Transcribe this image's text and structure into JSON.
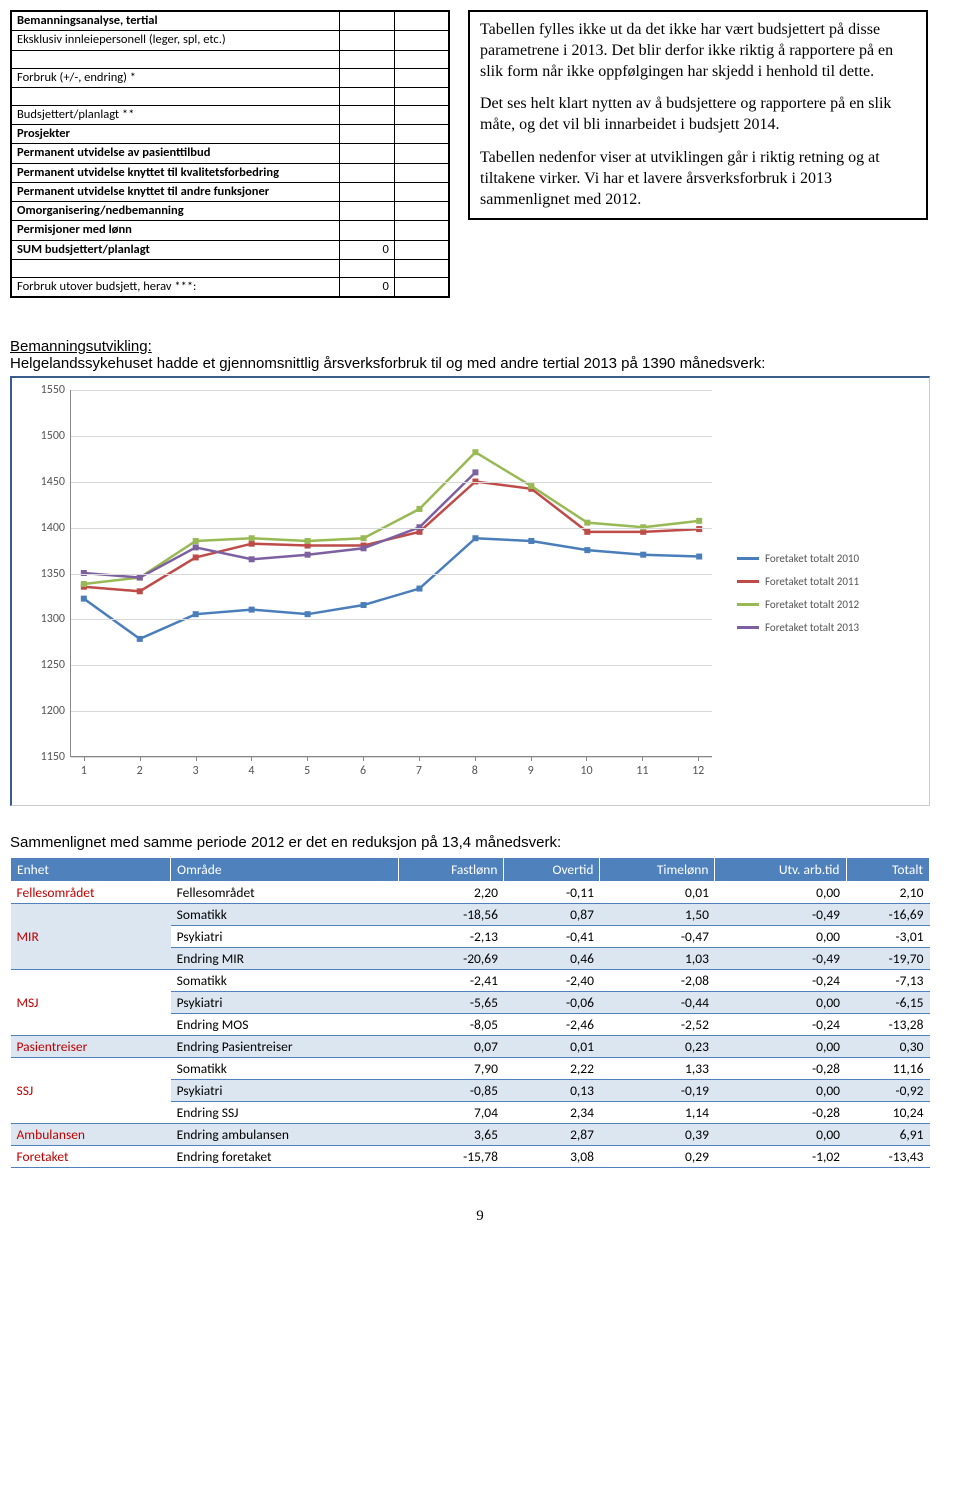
{
  "analysis_table": {
    "rows": [
      {
        "label": "Bemanningsanalyse, tertial",
        "bold": true,
        "v1": "",
        "v2": ""
      },
      {
        "label": "Eksklusiv innleiepersonell (leger, spl, etc.)",
        "bold": false,
        "v1": "",
        "v2": ""
      },
      {
        "label": "",
        "bold": false,
        "v1": "",
        "v2": ""
      },
      {
        "label": "Forbruk (+/-, endring) *",
        "bold": false,
        "v1": "",
        "v2": ""
      },
      {
        "label": "",
        "bold": false,
        "v1": "",
        "v2": ""
      },
      {
        "label": "Budsjettert/planlagt **",
        "bold": false,
        "v1": "",
        "v2": ""
      },
      {
        "label": "Prosjekter",
        "bold": true,
        "v1": "",
        "v2": ""
      },
      {
        "label": "Permanent utvidelse av pasienttilbud",
        "bold": true,
        "v1": "",
        "v2": ""
      },
      {
        "label": "Permanent utvidelse knyttet til kvalitetsforbedring",
        "bold": true,
        "v1": "",
        "v2": ""
      },
      {
        "label": "Permanent utvidelse knyttet til andre funksjoner",
        "bold": true,
        "v1": "",
        "v2": ""
      },
      {
        "label": "Omorganisering/nedbemanning",
        "bold": true,
        "v1": "",
        "v2": ""
      },
      {
        "label": "Permisjoner med lønn",
        "bold": true,
        "v1": "",
        "v2": ""
      },
      {
        "label": "SUM budsjettert/planlagt",
        "bold": true,
        "v1": "0",
        "v2": ""
      },
      {
        "label": "",
        "bold": false,
        "v1": "",
        "v2": ""
      },
      {
        "label": "Forbruk utover budsjett, herav ***:",
        "bold": false,
        "v1": "0",
        "v2": ""
      }
    ]
  },
  "text_box": {
    "p1": "Tabellen fylles ikke ut da det ikke har vært budsjettert på disse parametrene i 2013. Det blir derfor ikke riktig å rapportere på en slik form når ikke oppfølgingen har skjedd i henhold til dette.",
    "p2": "Det ses helt klart nytten av å budsjettere og rapportere på en slik måte, og det vil bli innarbeidet i budsjett 2014.",
    "p3": "Tabellen nedenfor viser at utviklingen går i riktig retning og at tiltakene virker. Vi har et lavere årsverksforbruk i 2013 sammenlignet med 2012."
  },
  "section1": {
    "title_a": "Bemanningsutvikling:",
    "title_b": "Helgelandssykehuset hadde et gjennomsnittlig årsverksforbruk til og med andre tertial 2013 på 1390 månedsverk:"
  },
  "chart": {
    "ymin": 1150,
    "ymax": 1550,
    "ystep": 50,
    "xcount": 12,
    "grid_color": "#d8d8d8",
    "axis_color": "#888888",
    "series": [
      {
        "name": "Foretaket totalt 2010",
        "color": "#4a7ebb",
        "values": [
          1322,
          1278,
          1305,
          1310,
          1305,
          1315,
          1333,
          1388,
          1385,
          1375,
          1370,
          1368
        ]
      },
      {
        "name": "Foretaket totalt 2011",
        "color": "#be4b48",
        "values": [
          1335,
          1330,
          1367,
          1382,
          1380,
          1380,
          1395,
          1450,
          1442,
          1395,
          1395,
          1398
        ]
      },
      {
        "name": "Foretaket totalt 2012",
        "color": "#98b954",
        "values": [
          1338,
          1345,
          1385,
          1388,
          1385,
          1388,
          1420,
          1482,
          1445,
          1405,
          1400,
          1407
        ]
      },
      {
        "name": "Foretaket totalt 2013",
        "color": "#7d60a0",
        "values": [
          1350,
          1345,
          1378,
          1365,
          1370,
          1377,
          1400,
          1460,
          null,
          null,
          null,
          null
        ]
      }
    ],
    "y_labels": [
      "1150",
      "1200",
      "1250",
      "1300",
      "1350",
      "1400",
      "1450",
      "1500",
      "1550"
    ],
    "x_labels": [
      "1",
      "2",
      "3",
      "4",
      "5",
      "6",
      "7",
      "8",
      "9",
      "10",
      "11",
      "12"
    ]
  },
  "section2": {
    "text": "Sammenlignet med samme periode 2012 er det en reduksjon på 13,4 månedsverk:"
  },
  "data_table": {
    "headers": [
      "Enhet",
      "Område",
      "Fastlønn",
      "Overtid",
      "Timelønn",
      "Utv. arb.tid",
      "Totalt"
    ],
    "rows": [
      {
        "unit": "Fellesområdet",
        "area": "Fellesområdet",
        "f": "2,20",
        "o": "-0,11",
        "t": "0,01",
        "u": "0,00",
        "tot": "2,10",
        "stripe": false,
        "show_unit": true
      },
      {
        "unit": "MIR",
        "area": "Somatikk",
        "f": "-18,56",
        "o": "0,87",
        "t": "1,50",
        "u": "-0,49",
        "tot": "-16,69",
        "stripe": true,
        "show_unit": true
      },
      {
        "unit": "",
        "area": "Psykiatri",
        "f": "-2,13",
        "o": "-0,41",
        "t": "-0,47",
        "u": "0,00",
        "tot": "-3,01",
        "stripe": false,
        "show_unit": false
      },
      {
        "unit": "",
        "area": "Endring MIR",
        "f": "-20,69",
        "o": "0,46",
        "t": "1,03",
        "u": "-0,49",
        "tot": "-19,70",
        "stripe": true,
        "show_unit": false
      },
      {
        "unit": "MSJ",
        "area": "Somatikk",
        "f": "-2,41",
        "o": "-2,40",
        "t": "-2,08",
        "u": "-0,24",
        "tot": "-7,13",
        "stripe": false,
        "show_unit": true
      },
      {
        "unit": "",
        "area": "Psykiatri",
        "f": "-5,65",
        "o": "-0,06",
        "t": "-0,44",
        "u": "0,00",
        "tot": "-6,15",
        "stripe": true,
        "show_unit": false
      },
      {
        "unit": "",
        "area": "Endring MOS",
        "f": "-8,05",
        "o": "-2,46",
        "t": "-2,52",
        "u": "-0,24",
        "tot": "-13,28",
        "stripe": false,
        "show_unit": false
      },
      {
        "unit": "Pasientreiser",
        "area": "Endring Pasientreiser",
        "f": "0,07",
        "o": "0,01",
        "t": "0,23",
        "u": "0,00",
        "tot": "0,30",
        "stripe": true,
        "show_unit": true
      },
      {
        "unit": "SSJ",
        "area": "Somatikk",
        "f": "7,90",
        "o": "2,22",
        "t": "1,33",
        "u": "-0,28",
        "tot": "11,16",
        "stripe": false,
        "show_unit": true
      },
      {
        "unit": "",
        "area": "Psykiatri",
        "f": "-0,85",
        "o": "0,13",
        "t": "-0,19",
        "u": "0,00",
        "tot": "-0,92",
        "stripe": true,
        "show_unit": false
      },
      {
        "unit": "",
        "area": "Endring SSJ",
        "f": "7,04",
        "o": "2,34",
        "t": "1,14",
        "u": "-0,28",
        "tot": "10,24",
        "stripe": false,
        "show_unit": false
      },
      {
        "unit": "Ambulansen",
        "area": "Endring ambulansen",
        "f": "3,65",
        "o": "2,87",
        "t": "0,39",
        "u": "0,00",
        "tot": "6,91",
        "stripe": true,
        "show_unit": true
      },
      {
        "unit": "Foretaket",
        "area": "Endring foretaket",
        "f": "-15,78",
        "o": "3,08",
        "t": "0,29",
        "u": "-1,02",
        "tot": "-13,43",
        "stripe": false,
        "show_unit": true
      }
    ]
  },
  "page_number": "9"
}
